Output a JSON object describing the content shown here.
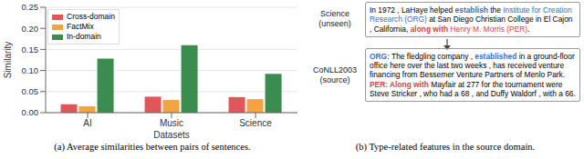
{
  "chart_data": {
    "type": "bar",
    "categories": [
      "AI",
      "Music",
      "Science"
    ],
    "series": [
      {
        "name": "Cross-domain",
        "color": "#e15759",
        "values": [
          0.02,
          0.038,
          0.037
        ]
      },
      {
        "name": "FactMix",
        "color": "#f4a340",
        "values": [
          0.015,
          0.03,
          0.032
        ]
      },
      {
        "name": "In-domain",
        "color": "#3b8c4f",
        "values": [
          0.128,
          0.16,
          0.092
        ]
      }
    ],
    "ylim": [
      0,
      0.25
    ],
    "yticks": [
      {
        "value": 0,
        "label": "0.00"
      },
      {
        "value": 0.05,
        "label": "0.05"
      },
      {
        "value": 0.1,
        "label": "0.10"
      },
      {
        "value": 0.15,
        "label": "0.15"
      },
      {
        "value": 0.2,
        "label": "0.20"
      },
      {
        "value": 0.25,
        "label": "0.25"
      }
    ],
    "ylabel": "Similarity",
    "xlabel": "Datasets",
    "legend": "upper left",
    "grid": true,
    "caption": "(a) Average similarities between pairs of sentences."
  },
  "panel_b": {
    "caption": "(b) Type-related features in the source domain.",
    "blocks": [
      {
        "label": [
          "Science",
          "(unseen)"
        ],
        "paragraphs": [
          [
            {
              "text": "In 1972 , LaHaye helped ",
              "style": "plain"
            },
            {
              "text": "establish",
              "style": "org_bold"
            },
            {
              "text": " the ",
              "style": "plain"
            },
            {
              "text": "Institute for Creation Research (ORG)",
              "style": "org"
            },
            {
              "text": " at San Diego Christian College in El Cajon , California, ",
              "style": "plain"
            },
            {
              "text": "along with",
              "style": "per_bold"
            },
            {
              "text": " Henry M. Morris (PER)",
              "style": "per"
            },
            {
              "text": ".",
              "style": "plain"
            }
          ]
        ]
      },
      {
        "label": [
          "CoNLL2003",
          "(source)"
        ],
        "paragraphs": [
          [
            {
              "text": "ORG:",
              "style": "org_bold"
            },
            {
              "text": " The fledgling company , ",
              "style": "plain"
            },
            {
              "text": "established",
              "style": "org_bold"
            },
            {
              "text": " in a ground-floor office here over the last two weeks , has received venture financing from Bessemer Venture Partners of Menlo Park.",
              "style": "plain"
            }
          ],
          [
            {
              "text": "PER: Along with",
              "style": "per_bold"
            },
            {
              "text": " Mayfair at 277 for the tournament were Steve Stricker , who had a 68 , and Duffy Waldorf , with a 66.",
              "style": "plain"
            }
          ]
        ]
      }
    ]
  }
}
